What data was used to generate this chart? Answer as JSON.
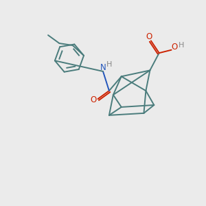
{
  "background_color": "#ebebeb",
  "bond_color": "#4a7c7c",
  "N_color": "#2255bb",
  "O_color": "#cc2200",
  "H_color": "#888888",
  "line_width": 1.4,
  "fig_width": 3.0,
  "fig_height": 3.0,
  "xlim": [
    0,
    10
  ],
  "ylim": [
    0,
    10
  ]
}
